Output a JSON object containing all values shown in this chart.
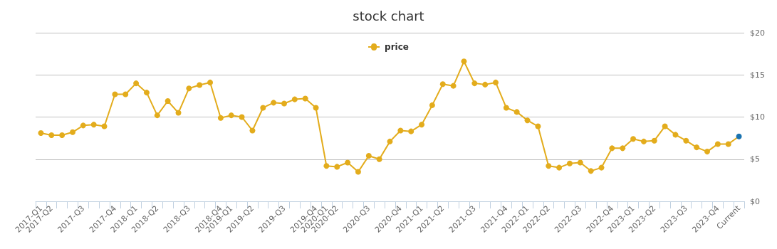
{
  "chart_data": {
    "type": "line",
    "title": "stock chart",
    "categories": [
      "2017-Q1",
      "2017-Q2",
      null,
      null,
      "2017-Q3",
      null,
      null,
      "2017-Q4",
      null,
      "2018-Q1",
      null,
      "2018-Q2",
      null,
      null,
      "2018-Q3",
      null,
      null,
      "2018-Q4",
      "2019-Q1",
      null,
      "2019-Q2",
      null,
      null,
      "2019-Q3",
      null,
      null,
      "2019-Q4",
      "2020-Q1",
      "2020-Q2",
      null,
      null,
      "2020-Q3",
      null,
      null,
      "2020-Q4",
      null,
      "2021-Q1",
      null,
      "2021-Q2",
      null,
      null,
      "2021-Q3",
      null,
      null,
      "2021-Q4",
      null,
      "2022-Q1",
      null,
      "2022-Q2",
      null,
      null,
      "2022-Q3",
      null,
      null,
      "2022-Q4",
      null,
      "2023-Q1",
      null,
      "2023-Q2",
      null,
      null,
      "2023-Q3",
      null,
      null,
      "2023-Q4",
      null,
      "Current"
    ],
    "series": [
      {
        "name": "price",
        "color": "#e3ac1c",
        "colors": [
          "#e3ac1c",
          "#e3ac1c",
          "#e3ac1c",
          "#e3ac1c",
          "#e3ac1c",
          "#e3ac1c",
          "#e3ac1c",
          "#e3ac1c",
          "#e3ac1c",
          "#e3ac1c",
          "#e3ac1c",
          "#e3ac1c",
          "#e3ac1c",
          "#e3ac1c",
          "#e3ac1c",
          "#e3ac1c",
          "#e3ac1c",
          "#e3ac1c",
          "#e3ac1c",
          "#e3ac1c",
          "#e3ac1c",
          "#e3ac1c",
          "#e3ac1c",
          "#e3ac1c",
          "#e3ac1c",
          "#e3ac1c",
          "#e3ac1c",
          "#e3ac1c",
          "#e3ac1c",
          "#e3ac1c",
          "#e3ac1c",
          "#e3ac1c",
          "#e3ac1c",
          "#e3ac1c",
          "#e3ac1c",
          "#e3ac1c",
          "#e3ac1c",
          "#e3ac1c",
          "#e3ac1c",
          "#e3ac1c",
          "#e3ac1c",
          "#e3ac1c",
          "#e3ac1c",
          "#e3ac1c",
          "#e3ac1c",
          "#e3ac1c",
          "#e3ac1c",
          "#e3ac1c",
          "#e3ac1c",
          "#e3ac1c",
          "#e3ac1c",
          "#e3ac1c",
          "#e3ac1c",
          "#e3ac1c",
          "#e3ac1c",
          "#e3ac1c",
          "#e3ac1c",
          "#e3ac1c",
          "#e3ac1c",
          "#e3ac1c",
          "#e3ac1c",
          "#e3ac1c",
          "#e3ac1c",
          "#e3ac1c",
          "#e3ac1c",
          "#e3ac1c",
          "#1a73b0"
        ],
        "values": [
          8.1,
          7.85,
          7.85,
          8.2,
          9.0,
          9.1,
          8.9,
          12.7,
          12.7,
          14.0,
          12.9,
          10.2,
          11.9,
          10.5,
          13.4,
          13.8,
          14.1,
          9.9,
          10.2,
          10.0,
          8.4,
          11.1,
          11.7,
          11.6,
          12.1,
          12.2,
          11.1,
          4.2,
          4.1,
          4.6,
          3.5,
          5.4,
          5.0,
          7.1,
          8.4,
          8.3,
          9.1,
          11.4,
          13.9,
          13.7,
          16.6,
          14.0,
          13.85,
          14.1,
          11.1,
          10.6,
          9.6,
          8.9,
          4.2,
          4.0,
          4.5,
          4.6,
          3.6,
          4.0,
          6.3,
          6.3,
          7.4,
          7.1,
          7.2,
          8.9,
          7.9,
          7.2,
          6.4,
          5.9,
          6.8,
          6.8,
          7.7
        ]
      }
    ],
    "ylim": [
      0,
      20
    ],
    "yticks": [
      {
        "value": 0,
        "label": "$0"
      },
      {
        "value": 5,
        "label": "$5"
      },
      {
        "value": 10,
        "label": "$10"
      },
      {
        "value": 15,
        "label": "$15"
      },
      {
        "value": 20,
        "label": "$20"
      }
    ],
    "grid": "y",
    "legend": "top",
    "marker": "circle",
    "line_style": "solid"
  }
}
